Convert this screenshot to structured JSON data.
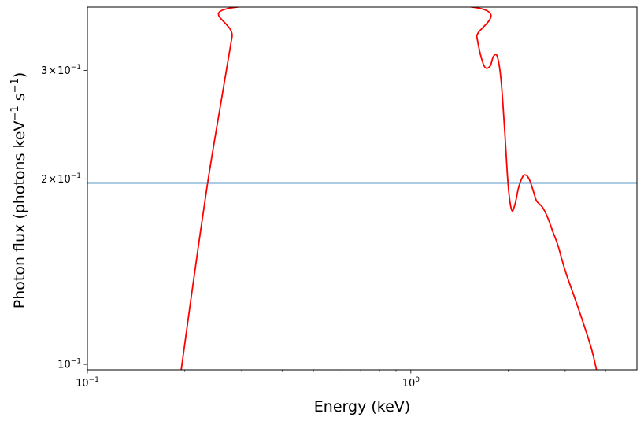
{
  "chart_data": {
    "type": "line",
    "title": "",
    "xlabel": "Energy (keV)",
    "ylabel": {
      "prefix": "Photon flux (photons keV",
      "exp1": "−1",
      "middle": " s",
      "exp2": "−1",
      "suffix": ")"
    },
    "xscale": "log",
    "yscale": "log",
    "xlim": [
      0.1,
      5.0
    ],
    "ylim": [
      0.098,
      0.38
    ],
    "grid": false,
    "x_ticks": [
      {
        "value": 0.1,
        "base": "10",
        "exp": "−1"
      },
      {
        "value": 1.0,
        "base": "10",
        "exp": "0"
      }
    ],
    "y_ticks": [
      {
        "value": 0.1,
        "mant": "",
        "base": "10",
        "exp": "−1"
      },
      {
        "value": 0.2,
        "mant": "2",
        "times": "×",
        "base": "10",
        "exp": "−1"
      },
      {
        "value": 0.3,
        "mant": "3",
        "times": "×",
        "base": "10",
        "exp": "−1"
      }
    ],
    "series": [
      {
        "color": "#ff0000",
        "x": [
          0.195,
          0.21,
          0.235,
          0.26,
          0.28,
          0.29,
          1.55,
          1.6,
          1.65,
          1.7,
          1.76,
          1.8,
          1.85,
          1.9,
          1.95,
          2.0,
          2.05,
          2.1,
          2.15,
          2.2,
          2.25,
          2.32,
          2.4,
          2.45,
          2.55,
          2.65,
          2.75,
          2.85,
          3.0,
          3.3,
          3.6,
          3.75
        ],
        "y": [
          0.098,
          0.13,
          0.196,
          0.27,
          0.34,
          0.38,
          0.38,
          0.34,
          0.315,
          0.303,
          0.305,
          0.316,
          0.316,
          0.29,
          0.24,
          0.195,
          0.178,
          0.182,
          0.193,
          0.2,
          0.203,
          0.2,
          0.19,
          0.184,
          0.18,
          0.173,
          0.164,
          0.156,
          0.142,
          0.123,
          0.107,
          0.098
        ]
      },
      {
        "color": "#1f77b4",
        "x": [
          0.1,
          5.0
        ],
        "y": [
          0.197,
          0.197
        ]
      }
    ]
  }
}
